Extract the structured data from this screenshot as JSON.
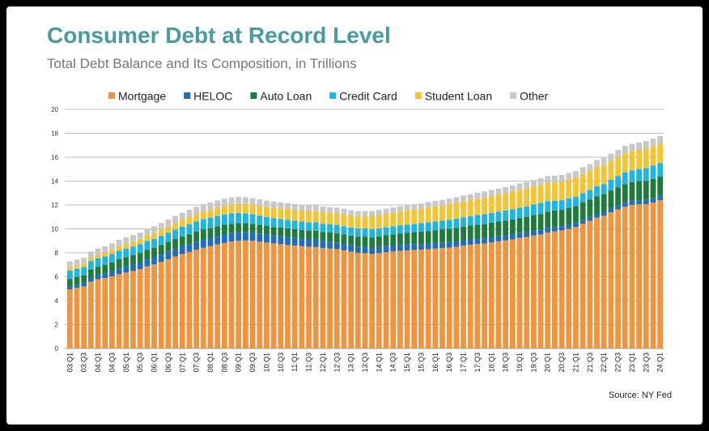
{
  "title": "Consumer Debt at Record Level",
  "subtitle": "Total Debt Balance and Its Composition, in Trillions",
  "source": "Source: NY Fed",
  "colors": {
    "Mortgage": "#f0953f",
    "HELOC": "#1f6cc1",
    "Auto Loan": "#1f7a3c",
    "Credit Card": "#20b4e2",
    "Student Loan": "#f2c436",
    "Other": "#c8c8c8"
  },
  "chart_data": {
    "type": "bar",
    "stacked": true,
    "legend_position": "top",
    "grid": true,
    "ylim": [
      0,
      20
    ],
    "yticks": [
      0,
      2,
      4,
      6,
      8,
      10,
      12,
      14,
      16,
      18,
      20
    ],
    "tick_labels": [
      "03:Q1",
      "03:Q3",
      "04:Q1",
      "04:Q3",
      "05:Q1",
      "05:Q3",
      "06:Q1",
      "06:Q3",
      "07:Q1",
      "07:Q3",
      "08:Q1",
      "08:Q3",
      "09:Q1",
      "09:Q3",
      "10:Q1",
      "10:Q3",
      "11:Q1",
      "11:Q3",
      "12:Q1",
      "12:Q3",
      "13:Q1",
      "13:Q3",
      "14:Q1",
      "14:Q3",
      "15:Q1",
      "15:Q3",
      "16:Q1",
      "16:Q3",
      "17:Q1",
      "17:Q3",
      "18:Q1",
      "18:Q3",
      "19:Q1",
      "19:Q3",
      "20:Q1",
      "20:Q3",
      "21:Q1",
      "21:Q3",
      "22:Q1",
      "22:Q3",
      "23:Q1",
      "23:Q3",
      "24:Q1"
    ],
    "categories": [
      "03:Q1",
      "03:Q2",
      "03:Q3",
      "03:Q4",
      "04:Q1",
      "04:Q2",
      "04:Q3",
      "04:Q4",
      "05:Q1",
      "05:Q2",
      "05:Q3",
      "05:Q4",
      "06:Q1",
      "06:Q2",
      "06:Q3",
      "06:Q4",
      "07:Q1",
      "07:Q2",
      "07:Q3",
      "07:Q4",
      "08:Q1",
      "08:Q2",
      "08:Q3",
      "08:Q4",
      "09:Q1",
      "09:Q2",
      "09:Q3",
      "09:Q4",
      "10:Q1",
      "10:Q2",
      "10:Q3",
      "10:Q4",
      "11:Q1",
      "11:Q2",
      "11:Q3",
      "11:Q4",
      "12:Q1",
      "12:Q2",
      "12:Q3",
      "12:Q4",
      "13:Q1",
      "13:Q2",
      "13:Q3",
      "13:Q4",
      "14:Q1",
      "14:Q2",
      "14:Q3",
      "14:Q4",
      "15:Q1",
      "15:Q2",
      "15:Q3",
      "15:Q4",
      "16:Q1",
      "16:Q2",
      "16:Q3",
      "16:Q4",
      "17:Q1",
      "17:Q2",
      "17:Q3",
      "17:Q4",
      "18:Q1",
      "18:Q2",
      "18:Q3",
      "18:Q4",
      "19:Q1",
      "19:Q2",
      "19:Q3",
      "19:Q4",
      "20:Q1",
      "20:Q2",
      "20:Q3",
      "20:Q4",
      "21:Q1",
      "21:Q2",
      "21:Q3",
      "21:Q4",
      "22:Q1",
      "22:Q2",
      "22:Q3",
      "22:Q4",
      "23:Q1",
      "23:Q2",
      "23:Q3",
      "23:Q4",
      "24:Q1"
    ],
    "series": [
      {
        "name": "Mortgage",
        "values": [
          4.94,
          5.08,
          5.18,
          5.58,
          5.78,
          5.89,
          6.03,
          6.21,
          6.35,
          6.48,
          6.63,
          6.87,
          7.03,
          7.23,
          7.46,
          7.69,
          7.9,
          8.07,
          8.25,
          8.42,
          8.55,
          8.7,
          8.82,
          8.93,
          9.0,
          9.03,
          9.0,
          8.92,
          8.85,
          8.78,
          8.72,
          8.65,
          8.6,
          8.55,
          8.5,
          8.48,
          8.4,
          8.35,
          8.3,
          8.2,
          8.1,
          8.0,
          7.98,
          7.9,
          7.98,
          8.05,
          8.11,
          8.16,
          8.2,
          8.24,
          8.26,
          8.3,
          8.35,
          8.4,
          8.44,
          8.5,
          8.6,
          8.68,
          8.74,
          8.78,
          8.86,
          8.96,
          9.03,
          9.12,
          9.24,
          9.32,
          9.44,
          9.53,
          9.7,
          9.8,
          9.87,
          10.0,
          10.16,
          10.44,
          10.67,
          10.93,
          11.1,
          11.38,
          11.62,
          11.85,
          12.01,
          12.05,
          12.06,
          12.2,
          12.4
        ]
      },
      {
        "name": "HELOC",
        "values": [
          0.24,
          0.26,
          0.29,
          0.32,
          0.36,
          0.4,
          0.44,
          0.48,
          0.51,
          0.54,
          0.56,
          0.58,
          0.6,
          0.62,
          0.63,
          0.64,
          0.65,
          0.66,
          0.68,
          0.7,
          0.71,
          0.71,
          0.71,
          0.71,
          0.71,
          0.71,
          0.7,
          0.69,
          0.68,
          0.67,
          0.66,
          0.65,
          0.64,
          0.63,
          0.62,
          0.61,
          0.59,
          0.58,
          0.56,
          0.54,
          0.53,
          0.52,
          0.52,
          0.51,
          0.51,
          0.51,
          0.5,
          0.5,
          0.5,
          0.49,
          0.48,
          0.47,
          0.47,
          0.46,
          0.46,
          0.45,
          0.45,
          0.44,
          0.44,
          0.43,
          0.43,
          0.42,
          0.42,
          0.41,
          0.4,
          0.4,
          0.4,
          0.39,
          0.39,
          0.38,
          0.36,
          0.35,
          0.34,
          0.33,
          0.32,
          0.32,
          0.32,
          0.32,
          0.33,
          0.34,
          0.34,
          0.35,
          0.36,
          0.36,
          0.37
        ]
      },
      {
        "name": "Auto Loan",
        "values": [
          0.64,
          0.64,
          0.65,
          0.7,
          0.7,
          0.71,
          0.73,
          0.77,
          0.78,
          0.78,
          0.79,
          0.8,
          0.8,
          0.81,
          0.82,
          0.82,
          0.82,
          0.82,
          0.83,
          0.84,
          0.82,
          0.81,
          0.81,
          0.79,
          0.77,
          0.75,
          0.73,
          0.72,
          0.71,
          0.71,
          0.72,
          0.73,
          0.73,
          0.73,
          0.74,
          0.75,
          0.75,
          0.77,
          0.79,
          0.79,
          0.81,
          0.83,
          0.85,
          0.87,
          0.88,
          0.9,
          0.93,
          0.95,
          0.96,
          0.99,
          1.02,
          1.05,
          1.07,
          1.1,
          1.11,
          1.13,
          1.14,
          1.16,
          1.17,
          1.19,
          1.22,
          1.23,
          1.24,
          1.26,
          1.27,
          1.29,
          1.31,
          1.32,
          1.34,
          1.35,
          1.36,
          1.38,
          1.41,
          1.44,
          1.46,
          1.47,
          1.49,
          1.51,
          1.53,
          1.55,
          1.56,
          1.58,
          1.6,
          1.61,
          1.62
        ]
      },
      {
        "name": "Credit Card",
        "values": [
          0.69,
          0.68,
          0.69,
          0.71,
          0.69,
          0.7,
          0.71,
          0.72,
          0.71,
          0.72,
          0.73,
          0.75,
          0.74,
          0.75,
          0.77,
          0.8,
          0.82,
          0.84,
          0.85,
          0.87,
          0.86,
          0.86,
          0.87,
          0.87,
          0.84,
          0.81,
          0.79,
          0.78,
          0.76,
          0.74,
          0.73,
          0.73,
          0.71,
          0.7,
          0.7,
          0.71,
          0.69,
          0.68,
          0.68,
          0.69,
          0.68,
          0.67,
          0.68,
          0.69,
          0.67,
          0.67,
          0.68,
          0.69,
          0.7,
          0.7,
          0.71,
          0.73,
          0.72,
          0.73,
          0.75,
          0.78,
          0.77,
          0.78,
          0.8,
          0.84,
          0.82,
          0.83,
          0.84,
          0.86,
          0.85,
          0.87,
          0.88,
          0.93,
          0.89,
          0.82,
          0.81,
          0.82,
          0.77,
          0.79,
          0.8,
          0.86,
          0.84,
          0.89,
          0.93,
          0.99,
          0.99,
          1.03,
          1.08,
          1.13,
          1.12
        ]
      },
      {
        "name": "Student Loan",
        "values": [
          0.24,
          0.25,
          0.26,
          0.28,
          0.3,
          0.32,
          0.35,
          0.37,
          0.39,
          0.4,
          0.42,
          0.45,
          0.48,
          0.5,
          0.52,
          0.55,
          0.57,
          0.6,
          0.62,
          0.64,
          0.66,
          0.68,
          0.7,
          0.73,
          0.76,
          0.78,
          0.8,
          0.82,
          0.84,
          0.86,
          0.88,
          0.9,
          0.91,
          0.92,
          0.93,
          0.94,
          0.96,
          0.97,
          0.98,
          1.0,
          1.0,
          1.01,
          1.02,
          1.08,
          1.11,
          1.12,
          1.13,
          1.16,
          1.18,
          1.19,
          1.2,
          1.23,
          1.26,
          1.26,
          1.28,
          1.31,
          1.34,
          1.34,
          1.36,
          1.38,
          1.41,
          1.41,
          1.43,
          1.46,
          1.49,
          1.5,
          1.51,
          1.51,
          1.54,
          1.54,
          1.55,
          1.56,
          1.59,
          1.59,
          1.59,
          1.58,
          1.59,
          1.6,
          1.6,
          1.6,
          1.6,
          1.6,
          1.61,
          1.61,
          1.6
        ]
      },
      {
        "name": "Other",
        "values": [
          0.52,
          0.52,
          0.51,
          0.52,
          0.52,
          0.52,
          0.53,
          0.54,
          0.54,
          0.55,
          0.55,
          0.57,
          0.57,
          0.58,
          0.58,
          0.59,
          0.59,
          0.6,
          0.61,
          0.62,
          0.61,
          0.62,
          0.61,
          0.61,
          0.59,
          0.57,
          0.55,
          0.54,
          0.53,
          0.52,
          0.51,
          0.5,
          0.49,
          0.48,
          0.48,
          0.48,
          0.47,
          0.47,
          0.47,
          0.46,
          0.45,
          0.45,
          0.44,
          0.45,
          0.44,
          0.44,
          0.44,
          0.44,
          0.45,
          0.46,
          0.46,
          0.47,
          0.48,
          0.48,
          0.49,
          0.49,
          0.49,
          0.51,
          0.51,
          0.52,
          0.52,
          0.53,
          0.54,
          0.54,
          0.55,
          0.55,
          0.55,
          0.56,
          0.56,
          0.56,
          0.56,
          0.56,
          0.57,
          0.58,
          0.58,
          0.6,
          0.6,
          0.6,
          0.6,
          0.61,
          0.62,
          0.63,
          0.64,
          0.65,
          0.66
        ]
      }
    ]
  }
}
